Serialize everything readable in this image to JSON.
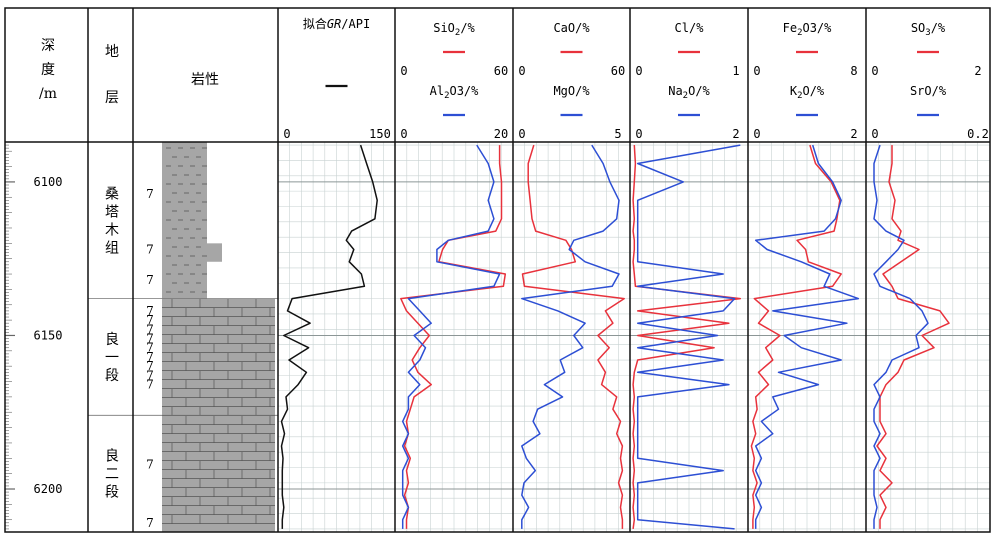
{
  "header": {
    "depth_label": [
      "深",
      "度",
      "/m"
    ],
    "formation_label": [
      "地",
      "层"
    ],
    "lithology_label": "岩性"
  },
  "depth": {
    "range": [
      6087,
      6214
    ],
    "major_ticks": [
      6100,
      6150,
      6200
    ],
    "tick_labels": [
      "6100",
      "6150",
      "6200"
    ]
  },
  "formations": [
    {
      "chars": [
        "桑",
        "塔",
        "木",
        "组"
      ],
      "top": 6087,
      "base": 6138
    },
    {
      "chars": [
        "良",
        "一",
        "段"
      ],
      "top": 6138,
      "base": 6176
    },
    {
      "chars": [
        "良",
        "二",
        "段"
      ],
      "top": 6176,
      "base": 6214
    }
  ],
  "lithology_marks": [
    {
      "label": "7",
      "depth": 6104
    },
    {
      "label": "7",
      "depth": 6122
    },
    {
      "label": "7",
      "depth": 6132
    },
    {
      "label": "7",
      "depth": 6142
    },
    {
      "label": "7",
      "depth": 6145
    },
    {
      "label": "7",
      "depth": 6148
    },
    {
      "label": "7",
      "depth": 6151
    },
    {
      "label": "7",
      "depth": 6154
    },
    {
      "label": "7",
      "depth": 6157
    },
    {
      "label": "7",
      "depth": 6160
    },
    {
      "label": "7",
      "depth": 6163
    },
    {
      "label": "7",
      "depth": 6166
    },
    {
      "label": "7",
      "depth": 6192
    },
    {
      "label": "7",
      "depth": 6211
    }
  ],
  "colors": {
    "red": "#e8323c",
    "blue": "#2d4fd4",
    "black": "#111111",
    "grid": "#c8d2d2",
    "lith": "#a6a6a6"
  },
  "chart_data": {
    "type": "line",
    "y_axis": {
      "label": "depth /m",
      "reversed": true,
      "range": [
        6087,
        6214
      ]
    },
    "depth_samples": [
      6088,
      6094,
      6100,
      6106,
      6112,
      6116,
      6119,
      6122,
      6126,
      6130,
      6134,
      6138,
      6142,
      6146,
      6150,
      6154,
      6158,
      6162,
      6166,
      6170,
      6174,
      6178,
      6182,
      6186,
      6190,
      6194,
      6198,
      6202,
      6206,
      6210,
      6213
    ],
    "tracks": [
      {
        "title": "拟合GR/API",
        "series": [
          {
            "name": "GR",
            "color": "#111111",
            "range": [
              0,
              150
            ],
            "range_labels": [
              "0",
              "150"
            ],
            "values": [
              107,
              115,
              123,
              129,
              126,
              95,
              88,
              98,
              92,
              108,
              112,
              16,
              10,
              40,
              5,
              38,
              12,
              35,
              24,
              8,
              10,
              2,
              6,
              2,
              4,
              3,
              3,
              3,
              5,
              3,
              3
            ]
          }
        ]
      },
      {
        "title": "SiO2/%",
        "series": [
          {
            "name": "SiO2/%",
            "color": "#e8323c",
            "range": [
              0,
              60
            ],
            "range_labels": [
              "0",
              "60"
            ],
            "values": [
              54,
              54,
              55,
              55,
              55,
              52,
              27,
              24,
              22,
              57,
              56,
              2,
              5,
              11,
              17,
              12,
              8,
              11,
              18,
              9,
              7,
              5,
              6,
              4,
              7,
              5,
              6,
              4,
              6,
              5,
              5
            ]
          },
          {
            "name": "Al2O3/%",
            "color": "#2d4fd4",
            "range": [
              0,
              20
            ],
            "range_labels": [
              "0",
              "20"
            ],
            "values": [
              14,
              16,
              17,
              16,
              17,
              16,
              9,
              7,
              7,
              18,
              17,
              2,
              4,
              6,
              3,
              5,
              4,
              2,
              4,
              2,
              2,
              1,
              2,
              1,
              2,
              1,
              1,
              1,
              2,
              1,
              1
            ]
          }
        ]
      },
      {
        "title": "CaO/%",
        "series": [
          {
            "name": "CaO/%",
            "color": "#e8323c",
            "range": [
              0,
              60
            ],
            "range_labels": [
              "0",
              "60"
            ],
            "values": [
              10,
              7,
              7,
              8,
              9,
              11,
              27,
              30,
              32,
              4,
              5,
              58,
              48,
              52,
              44,
              50,
              44,
              48,
              46,
              54,
              52,
              56,
              54,
              57,
              56,
              57,
              55,
              57,
              56,
              57,
              57
            ]
          },
          {
            "name": "MgO/%",
            "color": "#2d4fd4",
            "range": [
              0,
              5
            ],
            "range_labels": [
              "0",
              "5"
            ],
            "values": [
              3.4,
              3.9,
              4.2,
              4.6,
              4.5,
              3.9,
              2.6,
              2.4,
              3.1,
              4.6,
              4.3,
              0.3,
              1.9,
              3.1,
              2.6,
              3.0,
              2.0,
              2.2,
              1.3,
              2.1,
              1.0,
              0.8,
              1.1,
              0.3,
              0.5,
              0.9,
              0.4,
              0.3,
              0.6,
              0.3,
              0.3
            ]
          }
        ]
      },
      {
        "title": "Cl/%",
        "series": [
          {
            "name": "Cl/%",
            "color": "#e8323c",
            "range": [
              0,
              1
            ],
            "range_labels": [
              "0",
              "1"
            ],
            "values": [
              0.02,
              0.03,
              0.02,
              0.01,
              0.02,
              0.01,
              0.02,
              0.02,
              0.01,
              0.02,
              0.03,
              0.95,
              0.05,
              0.85,
              0.05,
              0.72,
              0.05,
              0.02,
              0.01,
              0.02,
              0.01,
              0.02,
              0.01,
              0.02,
              0.01,
              0.02,
              0.01,
              0.02,
              0.01,
              0.02,
              0.01
            ]
          },
          {
            "name": "Na2O/%",
            "color": "#2d4fd4",
            "range": [
              0,
              2
            ],
            "range_labels": [
              "0",
              "2"
            ],
            "values": [
              1.9,
              0.1,
              0.9,
              0.1,
              0.1,
              0.1,
              0.1,
              0.1,
              0.1,
              1.6,
              0.1,
              1.8,
              1.6,
              0.1,
              1.5,
              0.1,
              1.6,
              0.1,
              1.7,
              0.1,
              0.1,
              0.1,
              0.1,
              0.1,
              0.1,
              1.6,
              0.1,
              0.1,
              0.1,
              0.1,
              1.8
            ]
          }
        ]
      },
      {
        "title": "Fe2O3/%",
        "series": [
          {
            "name": "Fe2O3/%",
            "color": "#e8323c",
            "range": [
              0,
              8
            ],
            "range_labels": [
              "0",
              "8"
            ],
            "values": [
              4.2,
              4.6,
              5.7,
              6.3,
              6.1,
              5.9,
              3.3,
              3.9,
              4.1,
              6.4,
              5.8,
              0.3,
              1.3,
              0.6,
              2.1,
              1.1,
              1.6,
              0.6,
              1.3,
              0.4,
              0.5,
              0.2,
              0.4,
              0.1,
              0.3,
              0.2,
              0.5,
              0.2,
              0.3,
              0.2,
              0.2
            ]
          },
          {
            "name": "K2O/%",
            "color": "#2d4fd4",
            "range": [
              0,
              2
            ],
            "range_labels": [
              "0",
              "2"
            ],
            "values": [
              1.1,
              1.2,
              1.45,
              1.6,
              1.5,
              1.3,
              0.1,
              0.3,
              0.9,
              1.4,
              1.3,
              1.9,
              0.4,
              1.7,
              0.6,
              0.9,
              1.6,
              0.5,
              1.2,
              0.4,
              0.5,
              0.2,
              0.4,
              0.1,
              0.2,
              0.1,
              0.2,
              0.1,
              0.2,
              0.1,
              0.1
            ]
          }
        ]
      },
      {
        "title": "SO3/%",
        "series": [
          {
            "name": "SO3/%",
            "color": "#e8323c",
            "range": [
              0,
              2
            ],
            "range_labels": [
              "0",
              "2"
            ],
            "values": [
              0.4,
              0.4,
              0.35,
              0.45,
              0.4,
              0.55,
              0.5,
              0.85,
              0.55,
              0.25,
              0.4,
              0.5,
              1.2,
              1.35,
              0.9,
              1.1,
              0.6,
              0.5,
              0.3,
              0.2,
              0.2,
              0.2,
              0.3,
              0.15,
              0.3,
              0.2,
              0.4,
              0.2,
              0.3,
              0.2,
              0.2
            ]
          },
          {
            "name": "SrO/%",
            "color": "#2d4fd4",
            "range": [
              0,
              0.2
            ],
            "range_labels": [
              "0",
              "0.2"
            ],
            "values": [
              0.02,
              0.01,
              0.01,
              0.015,
              0.01,
              0.03,
              0.06,
              0.05,
              0.03,
              0.01,
              0.02,
              0.07,
              0.09,
              0.1,
              0.08,
              0.085,
              0.04,
              0.03,
              0.01,
              0.02,
              0.01,
              0.01,
              0.02,
              0.01,
              0.02,
              0.01,
              0.01,
              0.01,
              0.015,
              0.01,
              0.01
            ]
          }
        ]
      }
    ]
  }
}
